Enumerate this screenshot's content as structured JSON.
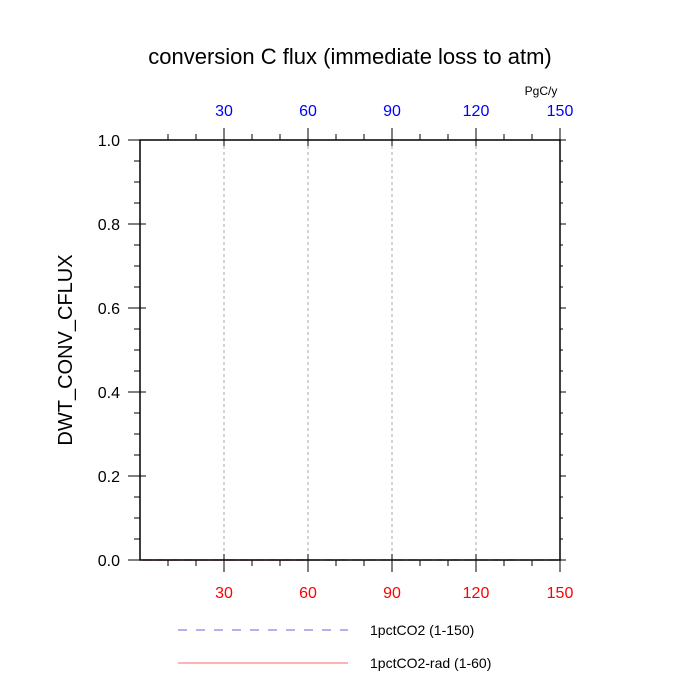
{
  "chart_data": {
    "type": "line",
    "title": "conversion C flux (immediate loss to atm)",
    "ylabel": "DWT_CONV_CFLUX",
    "top_axis_unit": "PgC/y",
    "xlim": [
      0,
      150
    ],
    "ylim": [
      0,
      1.0
    ],
    "x_ticks": [
      30,
      60,
      90,
      120,
      150
    ],
    "x_tick_labels": [
      "30",
      "60",
      "90",
      "120",
      "150"
    ],
    "y_ticks": [
      0.0,
      0.2,
      0.4,
      0.6,
      0.8,
      1.0
    ],
    "y_tick_labels": [
      "0.0",
      "0.2",
      "0.4",
      "0.6",
      "0.8",
      "1.0"
    ],
    "grid": "vertical dotted",
    "legend_placement": "bottom",
    "series": [
      {
        "name": "1pctCO2 (1-150)",
        "color": "#6666dd",
        "style": "dashed",
        "x_range": [
          1,
          150
        ],
        "values": [
          0,
          0
        ]
      },
      {
        "name": "1pctCO2-rad (1-60)",
        "color": "#ff6666",
        "style": "solid",
        "x_range": [
          1,
          60
        ],
        "values": [
          0,
          0
        ]
      }
    ],
    "colors": {
      "bottom_tick_labels": "#ff0000",
      "top_tick_labels": "#0000ff"
    }
  }
}
